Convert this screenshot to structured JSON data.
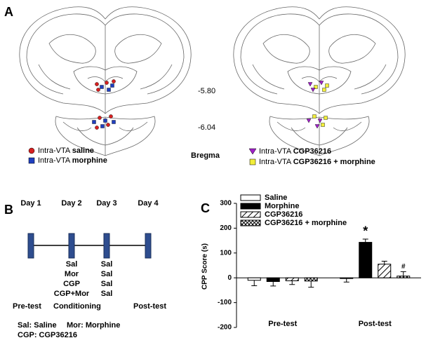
{
  "panel_a": {
    "label": "A",
    "levels": [
      "-5.80",
      "-6.04"
    ],
    "reference": "Bregma",
    "legend": [
      {
        "prefix": "Intra-VTA",
        "label": "saline",
        "color": "#d62020"
      },
      {
        "prefix": "Intra-VTA",
        "label": "morphine",
        "color": "#1f3fbf"
      },
      {
        "prefix": "Intra-VTA",
        "label": "CGP36216",
        "color": "#a020c8"
      },
      {
        "prefix": "Intra-VTA",
        "label": "CGP36216 + morphine",
        "color": "#f2ee3a"
      }
    ]
  },
  "panel_b": {
    "label": "B",
    "days": [
      "Day 1",
      "Day 2",
      "Day 3",
      "Day 4"
    ],
    "day2": [
      "Sal",
      "Mor",
      "CGP",
      "CGP+Mor"
    ],
    "day3": [
      "Sal",
      "Sal",
      "Sal",
      "Sal"
    ],
    "phases": [
      "Pre-test",
      "Conditioning",
      "Post-test"
    ],
    "notes": [
      "Sal: Saline",
      "Mor: Morphine",
      "CGP: CGP36216"
    ]
  },
  "chart_data": {
    "type": "bar",
    "panel_label": "C",
    "y_label": "CPP Score (s)",
    "categories": [
      "Pre-test",
      "Post-test"
    ],
    "ylim": [
      -200,
      300
    ],
    "yticks": [
      -200,
      -100,
      0,
      100,
      200,
      300
    ],
    "series": [
      {
        "name": "Saline",
        "color": "#ffffff",
        "values": [
          -10,
          -3
        ],
        "errors": [
          22,
          14
        ]
      },
      {
        "name": "Morphine",
        "color": "#000000",
        "values": [
          -15,
          143
        ],
        "errors": [
          18,
          13
        ],
        "annotations": [
          null,
          "*"
        ]
      },
      {
        "name": "CGP36216",
        "color": "#ffffff",
        "pattern": "diagonal",
        "values": [
          -12,
          55
        ],
        "errors": [
          15,
          12
        ]
      },
      {
        "name": "CGP36216 + morphine",
        "color": "#ffffff",
        "pattern": "crosshatch",
        "values": [
          -13,
          7
        ],
        "errors": [
          25,
          18
        ],
        "annotations": [
          null,
          "#"
        ]
      }
    ]
  }
}
